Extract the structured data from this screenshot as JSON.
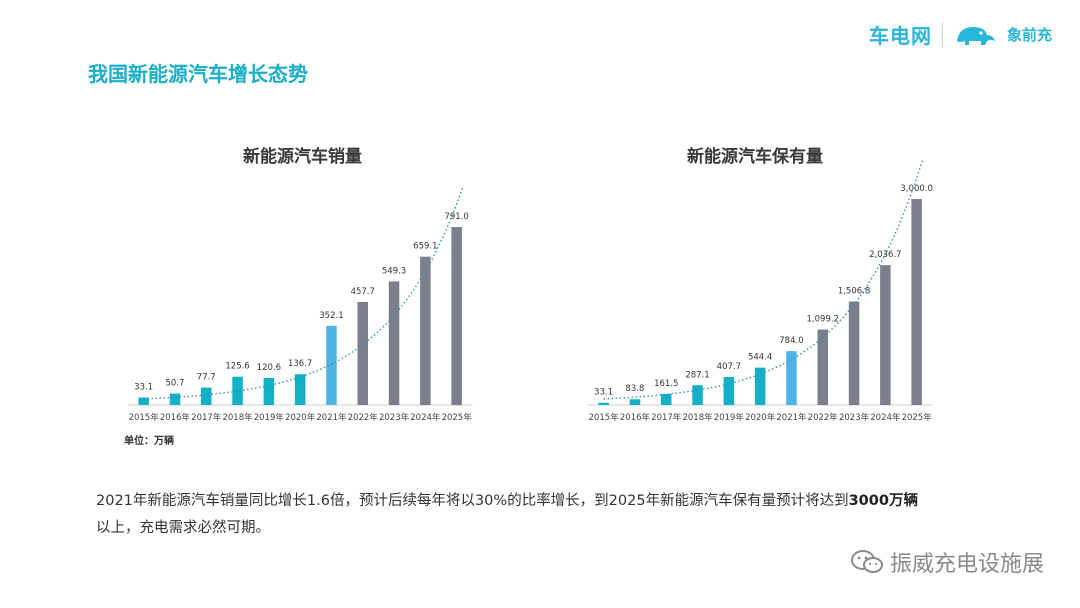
{
  "header": {
    "logo_left": "车电网",
    "logo_right": "象前充"
  },
  "page_title": "我国新能源汽车增长态势",
  "unit_label": "单位：万辆",
  "summary": {
    "text_before": "2021年新能源汽车销量同比增长1.6倍，预计后续每年将以30%的比率增长，到2025年新能源汽车保有量预计将达到",
    "bold": "3000万辆",
    "text_after": "以上，充电需求必然可期。"
  },
  "watermark": "振威充电设施展",
  "colors": {
    "accent": "#1aaec9",
    "bar_teal": "#13b0c6",
    "bar_highlight": "#4fb3e6",
    "bar_forecast": "#7b7f8c",
    "trend": "#2e8fd1"
  },
  "chart_data": [
    {
      "type": "bar",
      "title": "新能源汽车销量",
      "categories": [
        "2015年",
        "2016年",
        "2017年",
        "2018年",
        "2019年",
        "2020年",
        "2021年",
        "2022年",
        "2023年",
        "2024年",
        "2025年"
      ],
      "values": [
        33.1,
        50.7,
        77.7,
        125.6,
        120.6,
        136.7,
        352.1,
        457.7,
        549.3,
        659.1,
        791.0
      ],
      "labels": [
        "33.1",
        "50.7",
        "77.7",
        "125.6",
        "120.6",
        "136.7",
        "352.1",
        "457.7",
        "549.3",
        "659.1",
        "791.0"
      ],
      "bar_kind": [
        "actual",
        "actual",
        "actual",
        "actual",
        "actual",
        "actual",
        "highlight",
        "forecast",
        "forecast",
        "forecast",
        "forecast"
      ],
      "ylim": [
        0,
        791.0
      ],
      "trendline": "exponential, dotted",
      "grid": false
    },
    {
      "type": "bar",
      "title": "新能源汽车保有量",
      "categories": [
        "2015年",
        "2016年",
        "2017年",
        "2018年",
        "2019年",
        "2020年",
        "2021年",
        "2022年",
        "2023年",
        "2024年",
        "2025年"
      ],
      "values": [
        33.1,
        83.8,
        161.5,
        287.1,
        407.7,
        544.4,
        784.0,
        1099.2,
        1506.8,
        2036.7,
        3000.0
      ],
      "labels": [
        "33.1",
        "83.8",
        "161.5",
        "287.1",
        "407.7",
        "544.4",
        "784.0",
        "1,099.2",
        "1,506.8",
        "2,036.7",
        "3,000.0"
      ],
      "bar_kind": [
        "actual",
        "actual",
        "actual",
        "actual",
        "actual",
        "actual",
        "highlight",
        "forecast",
        "forecast",
        "forecast",
        "forecast"
      ],
      "ylim": [
        0,
        3000.0
      ],
      "trendline": "exponential, dotted",
      "grid": false
    }
  ]
}
